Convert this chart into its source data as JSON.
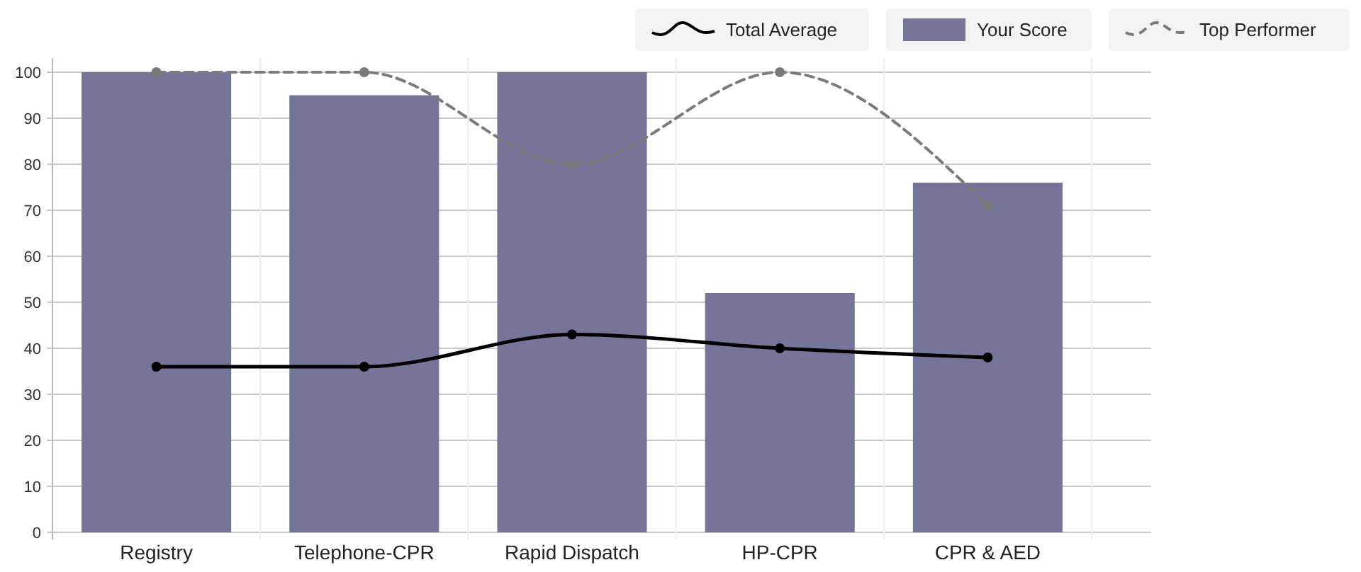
{
  "chart_data": {
    "type": "bar",
    "categories": [
      "Registry",
      "Telephone-CPR",
      "Rapid Dispatch",
      "HP-CPR",
      "CPR & AED"
    ],
    "series": [
      {
        "name": "Total Average",
        "type": "line",
        "color": "#000000",
        "line_style": "solid",
        "marker": "circle",
        "values": [
          36,
          36,
          43,
          40,
          38
        ]
      },
      {
        "name": "Your Score",
        "type": "bar",
        "color": "#75759a",
        "values": [
          100,
          95,
          100,
          52,
          76
        ]
      },
      {
        "name": "Top Performer",
        "type": "line",
        "color": "#7a7a7a",
        "line_style": "dashed",
        "marker": "circle",
        "values": [
          100,
          100,
          80,
          100,
          71
        ]
      }
    ],
    "ylim": [
      0,
      100
    ],
    "yticks": [
      0,
      10,
      20,
      30,
      40,
      50,
      60,
      70,
      80,
      90,
      100
    ],
    "grid": true,
    "legend": "top right"
  }
}
